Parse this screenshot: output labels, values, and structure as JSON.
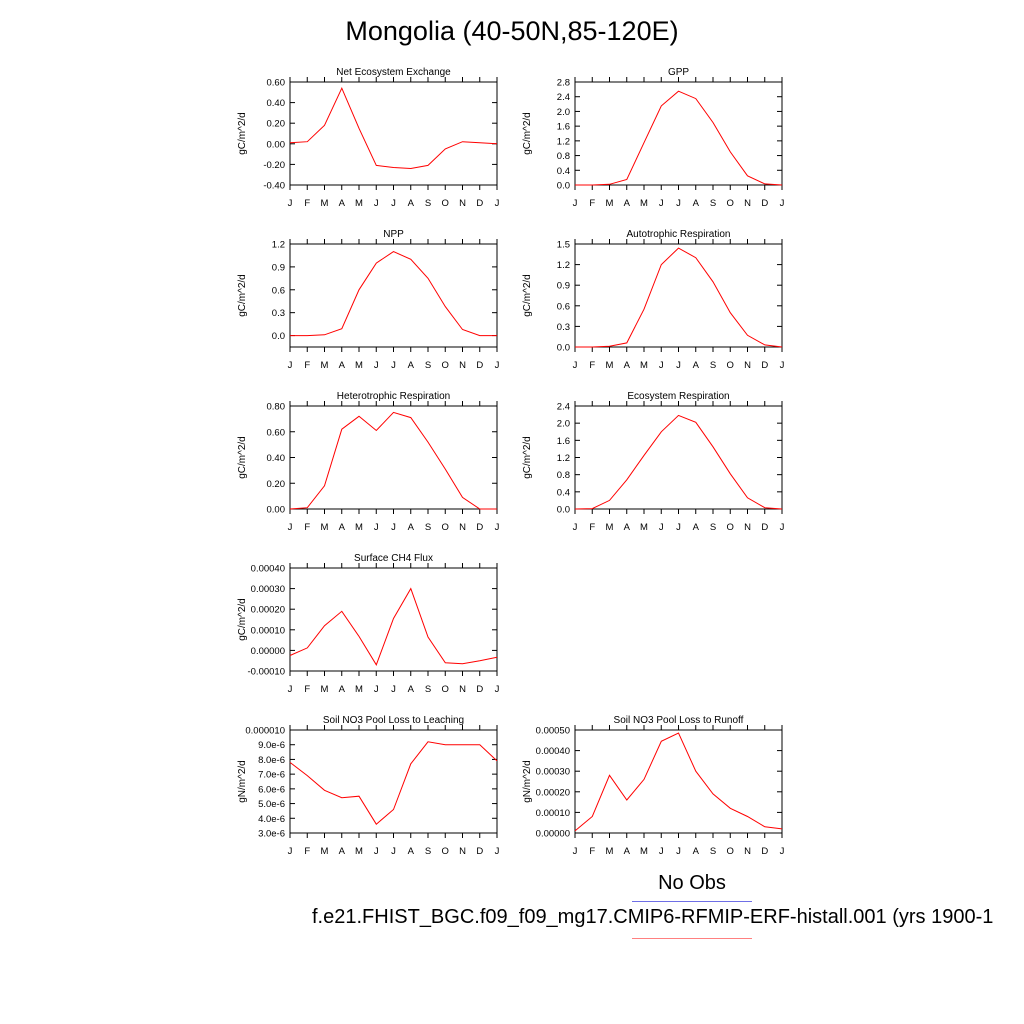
{
  "figure": {
    "title": "Mongolia (40-50N,85-120E)",
    "legend": [
      {
        "label": "No Obs",
        "color": "#6f6fe6"
      },
      {
        "label": "f.e21.FHIST_BGC.f09_f09_mg17.CMIP6-RFMIP-ERF-histall.001 (yrs 1900-1",
        "color": "#ff8080"
      }
    ]
  },
  "chart_data": [
    {
      "type": "line",
      "title": "Net Ecosystem Exchange",
      "xlabel": "",
      "ylabel": "gC/m^2/d",
      "categories": [
        "J",
        "F",
        "M",
        "A",
        "M",
        "J",
        "J",
        "A",
        "S",
        "O",
        "N",
        "D",
        "J"
      ],
      "yticks": [
        "-0.40",
        "-0.20",
        "0.00",
        "0.20",
        "0.40",
        "0.60"
      ],
      "ylim": [
        -0.4,
        0.6
      ],
      "grid": false,
      "series": [
        {
          "color": "#ff0000",
          "values": [
            0.01,
            0.02,
            0.18,
            0.54,
            0.15,
            -0.21,
            -0.23,
            -0.24,
            -0.21,
            -0.05,
            0.02,
            0.01,
            0.0
          ]
        }
      ]
    },
    {
      "type": "line",
      "title": "GPP",
      "xlabel": "",
      "ylabel": "gC/m^2/d",
      "categories": [
        "J",
        "F",
        "M",
        "A",
        "M",
        "J",
        "J",
        "A",
        "S",
        "O",
        "N",
        "D",
        "J"
      ],
      "yticks": [
        "0.0",
        "0.4",
        "0.8",
        "1.2",
        "1.6",
        "2.0",
        "2.4",
        "2.8"
      ],
      "ylim": [
        0,
        2.8
      ],
      "grid": false,
      "series": [
        {
          "color": "#ff0000",
          "values": [
            0.0,
            0.0,
            0.02,
            0.15,
            1.15,
            2.15,
            2.55,
            2.35,
            1.7,
            0.9,
            0.25,
            0.03,
            0.0
          ]
        }
      ]
    },
    {
      "type": "line",
      "title": "NPP",
      "xlabel": "",
      "ylabel": "gC/m^2/d",
      "categories": [
        "J",
        "F",
        "M",
        "A",
        "M",
        "J",
        "J",
        "A",
        "S",
        "O",
        "N",
        "D",
        "J"
      ],
      "yticks": [
        "0.0",
        "0.3",
        "0.6",
        "0.9",
        "1.2"
      ],
      "ylim": [
        -0.15,
        1.2
      ],
      "grid": false,
      "series": [
        {
          "color": "#ff0000",
          "values": [
            0.0,
            0.0,
            0.01,
            0.09,
            0.6,
            0.95,
            1.1,
            1.0,
            0.75,
            0.38,
            0.08,
            0.0,
            0.0
          ]
        }
      ]
    },
    {
      "type": "line",
      "title": "Autotrophic Respiration",
      "xlabel": "",
      "ylabel": "gC/m^2/d",
      "categories": [
        "J",
        "F",
        "M",
        "A",
        "M",
        "J",
        "J",
        "A",
        "S",
        "O",
        "N",
        "D",
        "J"
      ],
      "yticks": [
        "0.0",
        "0.3",
        "0.6",
        "0.9",
        "1.2",
        "1.5"
      ],
      "ylim": [
        0,
        1.5
      ],
      "grid": false,
      "series": [
        {
          "color": "#ff0000",
          "values": [
            0.0,
            0.0,
            0.01,
            0.06,
            0.55,
            1.2,
            1.44,
            1.3,
            0.95,
            0.5,
            0.17,
            0.03,
            0.0
          ]
        }
      ]
    },
    {
      "type": "line",
      "title": "Heterotrophic Respiration",
      "xlabel": "",
      "ylabel": "gC/m^2/d",
      "categories": [
        "J",
        "F",
        "M",
        "A",
        "M",
        "J",
        "J",
        "A",
        "S",
        "O",
        "N",
        "D",
        "J"
      ],
      "yticks": [
        "0.00",
        "0.20",
        "0.40",
        "0.60",
        "0.80"
      ],
      "ylim": [
        0,
        0.8
      ],
      "grid": false,
      "series": [
        {
          "color": "#ff0000",
          "values": [
            0.0,
            0.01,
            0.18,
            0.62,
            0.72,
            0.61,
            0.75,
            0.71,
            0.52,
            0.31,
            0.09,
            0.0,
            0.0
          ]
        }
      ]
    },
    {
      "type": "line",
      "title": "Ecosystem Respiration",
      "xlabel": "",
      "ylabel": "gC/m^2/d",
      "categories": [
        "J",
        "F",
        "M",
        "A",
        "M",
        "J",
        "J",
        "A",
        "S",
        "O",
        "N",
        "D",
        "J"
      ],
      "yticks": [
        "0.0",
        "0.4",
        "0.8",
        "1.2",
        "1.6",
        "2.0",
        "2.4"
      ],
      "ylim": [
        0,
        2.4
      ],
      "grid": false,
      "series": [
        {
          "color": "#ff0000",
          "values": [
            0.0,
            0.01,
            0.2,
            0.68,
            1.25,
            1.8,
            2.18,
            2.02,
            1.45,
            0.82,
            0.26,
            0.03,
            0.0
          ]
        }
      ]
    },
    {
      "type": "line",
      "title": "Surface CH4 Flux",
      "xlabel": "",
      "ylabel": "gC/m^2/d",
      "categories": [
        "J",
        "F",
        "M",
        "A",
        "M",
        "J",
        "J",
        "A",
        "S",
        "O",
        "N",
        "D",
        "J"
      ],
      "yticks": [
        "-0.00010",
        "0.00000",
        "0.00010",
        "0.00020",
        "0.00030",
        "0.00040"
      ],
      "ylim": [
        -0.0001,
        0.0004
      ],
      "grid": false,
      "series": [
        {
          "color": "#ff0000",
          "values": [
            -2.5e-05,
            1.2e-05,
            0.00012,
            0.00019,
            6.8e-05,
            -7e-05,
            0.000155,
            0.0003,
            6.5e-05,
            -6e-05,
            -6.5e-05,
            -5e-05,
            -3.3e-05
          ]
        }
      ]
    },
    {
      "type": "line",
      "title": "Soil NO3 Pool Loss to Leaching",
      "xlabel": "",
      "ylabel": "gN/m^2/d",
      "categories": [
        "J",
        "F",
        "M",
        "A",
        "M",
        "J",
        "J",
        "A",
        "S",
        "O",
        "N",
        "D",
        "J"
      ],
      "yticks": [
        "3.0e-6",
        "4.0e-6",
        "5.0e-6",
        "6.0e-6",
        "7.0e-6",
        "8.0e-6",
        "9.0e-6",
        "0.000010"
      ],
      "ylim": [
        3e-06,
        1e-05
      ],
      "grid": false,
      "series": [
        {
          "color": "#ff0000",
          "values": [
            7.8e-06,
            6.9e-06,
            5.9e-06,
            5.4e-06,
            5.5e-06,
            3.6e-06,
            4.6e-06,
            7.7e-06,
            9.2e-06,
            9e-06,
            9e-06,
            9e-06,
            7.9e-06
          ]
        }
      ]
    },
    {
      "type": "line",
      "title": "Soil NO3 Pool Loss to Runoff",
      "xlabel": "",
      "ylabel": "gN/m^2/d",
      "categories": [
        "J",
        "F",
        "M",
        "A",
        "M",
        "J",
        "J",
        "A",
        "S",
        "O",
        "N",
        "D",
        "J"
      ],
      "yticks": [
        "0.00000",
        "0.00010",
        "0.00020",
        "0.00030",
        "0.00040",
        "0.00050"
      ],
      "ylim": [
        0,
        0.0005
      ],
      "grid": false,
      "series": [
        {
          "color": "#ff0000",
          "values": [
            1e-05,
            8e-05,
            0.00028,
            0.00016,
            0.00026,
            0.000445,
            0.000485,
            0.0003,
            0.00019,
            0.00012,
            8e-05,
            3e-05,
            2e-05
          ]
        }
      ]
    }
  ]
}
